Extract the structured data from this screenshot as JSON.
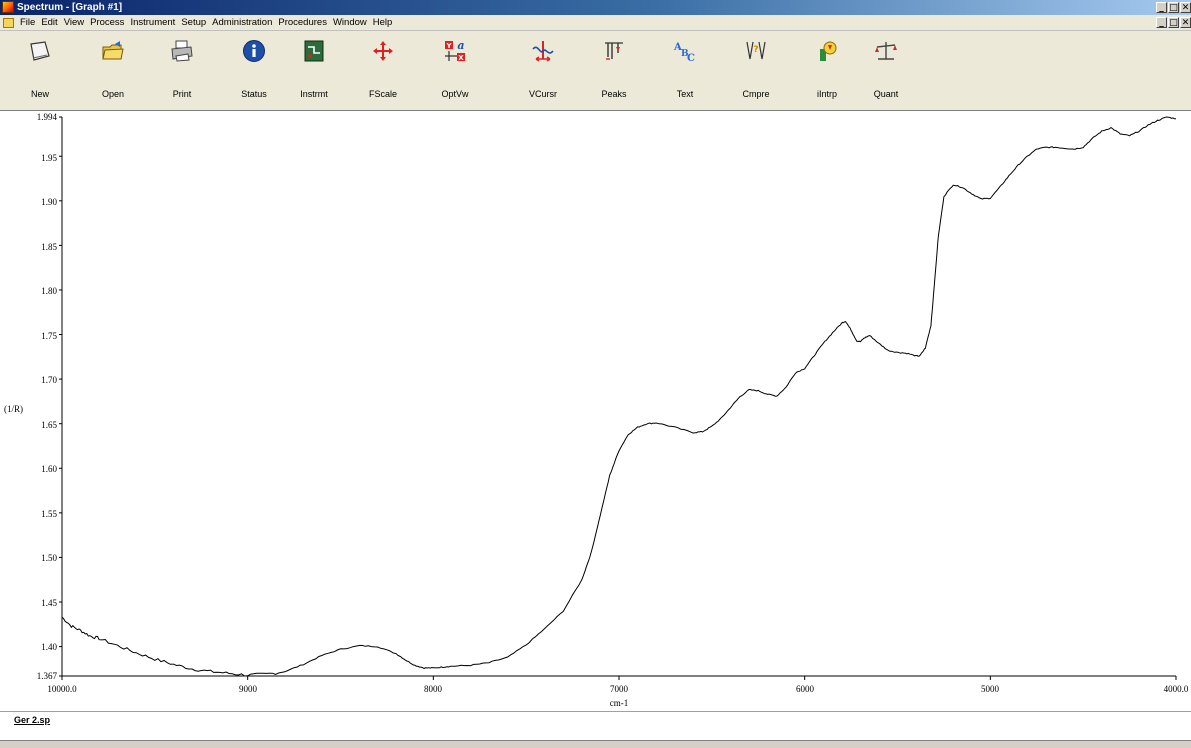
{
  "window": {
    "title": "Spectrum - [Graph #1]",
    "minimize": "_",
    "restore": "□",
    "close": "✕"
  },
  "menu": {
    "items": [
      "File",
      "Edit",
      "View",
      "Process",
      "Instrument",
      "Setup",
      "Administration",
      "Procedures",
      "Window",
      "Help"
    ]
  },
  "toolbar": {
    "buttons": [
      {
        "label": "New",
        "icon": "new-icon"
      },
      {
        "label": "Open",
        "icon": "open-icon"
      },
      {
        "label": "Print",
        "icon": "print-icon"
      },
      {
        "label": "Status",
        "icon": "info-icon"
      },
      {
        "label": "Instrmt",
        "icon": "instrument-icon"
      },
      {
        "label": "FScale",
        "icon": "move-arrows-icon"
      },
      {
        "label": "OptVw",
        "icon": "options-view-icon"
      },
      {
        "label": "VCursr",
        "icon": "cursor-icon"
      },
      {
        "label": "Peaks",
        "icon": "peaks-icon"
      },
      {
        "label": "Text",
        "icon": "text-icon"
      },
      {
        "label": "Cmpre",
        "icon": "compare-icon"
      },
      {
        "label": "iIntrp",
        "icon": "interpret-icon"
      },
      {
        "label": "Quant",
        "icon": "scales-icon"
      }
    ]
  },
  "chart_data": {
    "type": "line",
    "xlabel": "cm-1",
    "ylabel": "(1/R)",
    "xlim": [
      10000.0,
      4000.0
    ],
    "ylim": [
      1.367,
      1.994
    ],
    "x_ticks": [
      "10000.0",
      "9000",
      "8000",
      "7000",
      "6000",
      "5000",
      "4000.0"
    ],
    "y_ticks": [
      "1.994",
      "1.95",
      "1.90",
      "1.85",
      "1.80",
      "1.75",
      "1.70",
      "1.65",
      "1.60",
      "1.55",
      "1.50",
      "1.45",
      "1.40",
      "1.367"
    ],
    "series": [
      {
        "x": [
          10000,
          9950,
          9900,
          9850,
          9800,
          9700,
          9600,
          9500,
          9400,
          9300,
          9200,
          9100,
          9000,
          8900,
          8800,
          8700,
          8600,
          8500,
          8400,
          8300,
          8200,
          8150,
          8100,
          8050,
          8000,
          7950,
          7900,
          7800,
          7700,
          7600,
          7500,
          7400,
          7300,
          7200,
          7150,
          7100,
          7050,
          7000,
          6950,
          6900,
          6850,
          6800,
          6700,
          6600,
          6550,
          6500,
          6450,
          6400,
          6350,
          6300,
          6250,
          6200,
          6150,
          6100,
          6050,
          6000,
          5950,
          5900,
          5850,
          5800,
          5780,
          5750,
          5720,
          5700,
          5680,
          5650,
          5600,
          5550,
          5500,
          5450,
          5400,
          5380,
          5350,
          5320,
          5300,
          5280,
          5250,
          5200,
          5150,
          5100,
          5050,
          5000,
          4950,
          4900,
          4850,
          4800,
          4750,
          4700,
          4650,
          4600,
          4550,
          4500,
          4450,
          4400,
          4350,
          4300,
          4250,
          4200,
          4150,
          4100,
          4050,
          4000
        ],
        "y": [
          1.433,
          1.423,
          1.418,
          1.412,
          1.409,
          1.401,
          1.393,
          1.386,
          1.38,
          1.375,
          1.372,
          1.37,
          1.368,
          1.369,
          1.372,
          1.38,
          1.39,
          1.397,
          1.401,
          1.4,
          1.392,
          1.385,
          1.379,
          1.376,
          1.376,
          1.377,
          1.378,
          1.379,
          1.382,
          1.388,
          1.402,
          1.42,
          1.44,
          1.475,
          1.505,
          1.548,
          1.592,
          1.62,
          1.638,
          1.646,
          1.65,
          1.651,
          1.646,
          1.64,
          1.641,
          1.647,
          1.656,
          1.668,
          1.68,
          1.688,
          1.687,
          1.683,
          1.681,
          1.691,
          1.707,
          1.712,
          1.726,
          1.74,
          1.752,
          1.763,
          1.765,
          1.755,
          1.743,
          1.742,
          1.746,
          1.749,
          1.74,
          1.732,
          1.73,
          1.729,
          1.726,
          1.726,
          1.735,
          1.76,
          1.81,
          1.86,
          1.905,
          1.918,
          1.915,
          1.908,
          1.902,
          1.903,
          1.915,
          1.928,
          1.94,
          1.95,
          1.958,
          1.96,
          1.96,
          1.959,
          1.958,
          1.96,
          1.97,
          1.978,
          1.982,
          1.975,
          1.973,
          1.978,
          1.985,
          1.99,
          1.994,
          1.992
        ]
      }
    ]
  },
  "status": {
    "file_label": "Ger 2.sp"
  }
}
